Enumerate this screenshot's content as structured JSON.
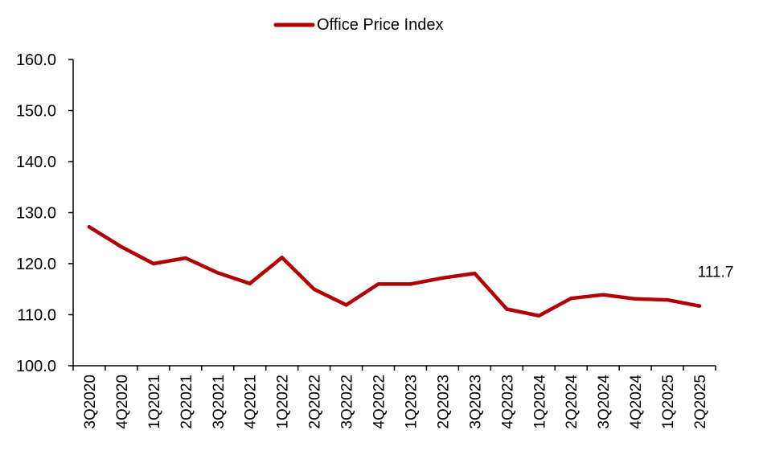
{
  "chart_data": {
    "type": "line",
    "title": "",
    "xlabel": "",
    "ylabel": "",
    "ylim": [
      100,
      160
    ],
    "yticks": [
      100,
      110,
      120,
      130,
      140,
      150,
      160
    ],
    "ytick_labels": [
      "100.0",
      "110.0",
      "120.0",
      "130.0",
      "140.0",
      "150.0",
      "160.0"
    ],
    "grid": false,
    "legend_position": "top-center",
    "categories": [
      "3Q2020",
      "4Q2020",
      "1Q2021",
      "2Q2021",
      "3Q2021",
      "4Q2021",
      "1Q2022",
      "2Q2022",
      "3Q2022",
      "4Q2022",
      "1Q2023",
      "2Q2023",
      "3Q2023",
      "4Q2023",
      "1Q2024",
      "2Q2024",
      "3Q2024",
      "4Q2024",
      "1Q2025",
      "2Q2025"
    ],
    "series": [
      {
        "name": "Office Price Index",
        "color": "#b00000",
        "values": [
          127.2,
          123.3,
          120.0,
          121.1,
          118.2,
          116.1,
          121.2,
          115.0,
          111.9,
          116.0,
          116.0,
          117.2,
          118.1,
          111.1,
          109.8,
          113.2,
          113.9,
          113.1,
          112.9,
          111.7
        ]
      }
    ],
    "annotations": [
      {
        "category": "2Q2025",
        "text": "111.7"
      }
    ]
  }
}
